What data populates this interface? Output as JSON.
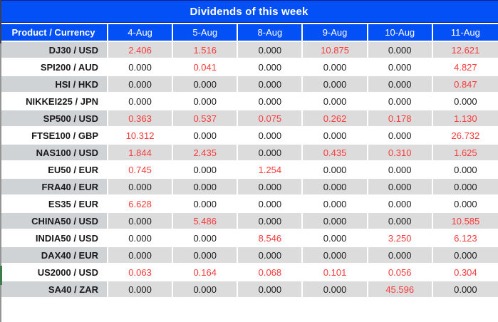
{
  "title": "Dividends of this week",
  "colors": {
    "header_blue": "#0351f6",
    "value_red": "#fa3b3b",
    "row_gray": "#dcdcdc",
    "product_gray": "#cfd3d6",
    "border_gray": "#949494",
    "accent_green": "#3e7d4b"
  },
  "table": {
    "product_column_header": "Product / Currency",
    "date_columns": [
      "4-Aug",
      "5-Aug",
      "8-Aug",
      "9-Aug",
      "10-Aug",
      "11-Aug"
    ],
    "rows": [
      {
        "product": "DJ30 / USD",
        "values": [
          "2.406",
          "1.516",
          "0.000",
          "10.875",
          "0.000",
          "12.621"
        ]
      },
      {
        "product": "SPI200 / AUD",
        "values": [
          "0.000",
          "0.041",
          "0.000",
          "0.000",
          "0.000",
          "4.827"
        ]
      },
      {
        "product": "HSI / HKD",
        "values": [
          "0.000",
          "0.000",
          "0.000",
          "0.000",
          "0.000",
          "0.847"
        ]
      },
      {
        "product": "NIKKEI225 / JPN",
        "values": [
          "0.000",
          "0.000",
          "0.000",
          "0.000",
          "0.000",
          "0.000"
        ]
      },
      {
        "product": "SP500 / USD",
        "values": [
          "0.363",
          "0.537",
          "0.075",
          "0.262",
          "0.178",
          "1.130"
        ]
      },
      {
        "product": "FTSE100 / GBP",
        "values": [
          "10.312",
          "0.000",
          "0.000",
          "0.000",
          "0.000",
          "26.732"
        ]
      },
      {
        "product": "NAS100 / USD",
        "values": [
          "1.844",
          "2.435",
          "0.000",
          "0.435",
          "0.310",
          "1.625"
        ]
      },
      {
        "product": "EU50 / EUR",
        "values": [
          "0.745",
          "0.000",
          "1.254",
          "0.000",
          "0.000",
          "0.000"
        ]
      },
      {
        "product": "FRA40 / EUR",
        "values": [
          "0.000",
          "0.000",
          "0.000",
          "0.000",
          "0.000",
          "0.000"
        ]
      },
      {
        "product": "ES35 / EUR",
        "values": [
          "6.628",
          "0.000",
          "0.000",
          "0.000",
          "0.000",
          "0.000"
        ]
      },
      {
        "product": "CHINA50 / USD",
        "values": [
          "0.000",
          "5.486",
          "0.000",
          "0.000",
          "0.000",
          "10.585"
        ]
      },
      {
        "product": "INDIA50 / USD",
        "values": [
          "0.000",
          "0.000",
          "8.546",
          "0.000",
          "3.250",
          "6.123"
        ]
      },
      {
        "product": "DAX40 / EUR",
        "values": [
          "0.000",
          "0.000",
          "0.000",
          "0.000",
          "0.000",
          "0.000"
        ]
      },
      {
        "product": "US2000 / USD",
        "values": [
          "0.063",
          "0.164",
          "0.068",
          "0.101",
          "0.056",
          "0.304"
        ]
      },
      {
        "product": "SA40 / ZAR",
        "values": [
          "0.000",
          "0.000",
          "0.000",
          "0.000",
          "45.596",
          "0.000"
        ]
      }
    ]
  }
}
